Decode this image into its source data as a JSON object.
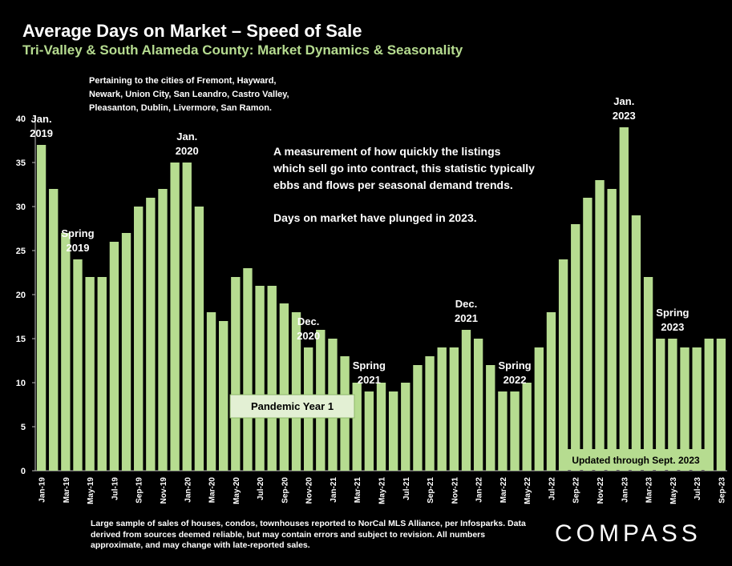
{
  "header": {
    "title": "Average Days on Market – Speed of Sale",
    "subtitle": "Tri-Valley & South Alameda County: Market Dynamics & Seasonality"
  },
  "chart_data": {
    "type": "bar",
    "title": "Average Days on Market – Speed of Sale",
    "subtitle": "Tri-Valley & South Alameda County: Market Dynamics & Seasonality",
    "xlabel": "",
    "ylabel": "",
    "ylim": [
      0,
      40
    ],
    "yticks": [
      0,
      5,
      10,
      15,
      20,
      25,
      30,
      35,
      40
    ],
    "grid": false,
    "bar_color": "#b6dc90",
    "categories": [
      "Jan-19",
      "Feb-19",
      "Mar-19",
      "Apr-19",
      "May-19",
      "Jun-19",
      "Jul-19",
      "Aug-19",
      "Sep-19",
      "Oct-19",
      "Nov-19",
      "Dec-19",
      "Jan-20",
      "Feb-20",
      "Mar-20",
      "Apr-20",
      "May-20",
      "Jun-20",
      "Jul-20",
      "Aug-20",
      "Sep-20",
      "Oct-20",
      "Nov-20",
      "Dec-20",
      "Jan-21",
      "Feb-21",
      "Mar-21",
      "Apr-21",
      "May-21",
      "Jun-21",
      "Jul-21",
      "Aug-21",
      "Sep-21",
      "Oct-21",
      "Nov-21",
      "Dec-21",
      "Jan-22",
      "Feb-22",
      "Mar-22",
      "Apr-22",
      "May-22",
      "Jun-22",
      "Jul-22",
      "Aug-22",
      "Sep-22",
      "Oct-22",
      "Nov-22",
      "Dec-22",
      "Jan-23",
      "Feb-23",
      "Mar-23",
      "Apr-23",
      "May-23",
      "Jun-23",
      "Jul-23",
      "Aug-23",
      "Sep-23"
    ],
    "values": [
      37,
      32,
      27,
      24,
      22,
      22,
      26,
      27,
      30,
      31,
      32,
      35,
      35,
      30,
      18,
      17,
      22,
      23,
      21,
      21,
      19,
      18,
      14,
      16,
      15,
      13,
      10,
      9,
      10,
      9,
      10,
      12,
      13,
      14,
      14,
      16,
      15,
      12,
      9,
      9,
      10,
      14,
      18,
      24,
      28,
      31,
      33,
      32,
      39,
      29,
      22,
      15,
      15,
      14,
      14,
      15,
      15
    ],
    "x_tick_labels": [
      "Jan-19",
      "Mar-19",
      "May-19",
      "Jul-19",
      "Sep-19",
      "Nov-19",
      "Jan-20",
      "Mar-20",
      "May-20",
      "Jul-20",
      "Sep-20",
      "Nov-20",
      "Jan-21",
      "Mar-21",
      "May-21",
      "Jul-21",
      "Sep-21",
      "Nov-21",
      "Jan-22",
      "Mar-22",
      "May-22",
      "Jul-22",
      "Sep-22",
      "Nov-22",
      "Jan-23",
      "Mar-23",
      "May-23",
      "Jul-23",
      "Sep-23"
    ],
    "annotations": [
      {
        "lines": [
          "Jan.",
          "2019"
        ],
        "at": "Jan-19"
      },
      {
        "lines": [
          "Spring",
          "2019"
        ],
        "at": "Apr-19"
      },
      {
        "lines": [
          "Jan.",
          "2020"
        ],
        "at": "Jan-20"
      },
      {
        "lines": [
          "Dec.",
          "2020"
        ],
        "at": "Nov-20"
      },
      {
        "lines": [
          "Spring",
          "2021"
        ],
        "at": "Apr-21"
      },
      {
        "lines": [
          "Dec.",
          "2021"
        ],
        "at": "Dec-21"
      },
      {
        "lines": [
          "Spring",
          "2022"
        ],
        "at": "Apr-22"
      },
      {
        "lines": [
          "Jan.",
          "2023"
        ],
        "at": "Jan-23"
      },
      {
        "lines": [
          "Spring",
          "2023"
        ],
        "at": "May-23"
      }
    ],
    "cities_note": [
      "Pertaining to the cities of Fremont, Hayward,",
      "Newark, Union City, San Leandro, Castro Valley,",
      "Pleasanton, Dublin, Livermore, San Ramon."
    ],
    "description": [
      "A measurement of how quickly the listings",
      "which sell go into contract, this statistic typically",
      "ebbs and flows per seasonal demand trends."
    ],
    "highlight": "Days on market have plunged in 2023.",
    "pandemic_label": "Pandemic Year 1",
    "updated_label": "Updated through Sept. 2023"
  },
  "footer": {
    "note": "Large sample of sales of houses, condos, townhouses reported to NorCal MLS Alliance, per Infosparks. Data derived from sources deemed reliable, but may contain errors and subject to revision. All numbers approximate, and may change with late-reported sales.",
    "brand": "COMPASS"
  }
}
